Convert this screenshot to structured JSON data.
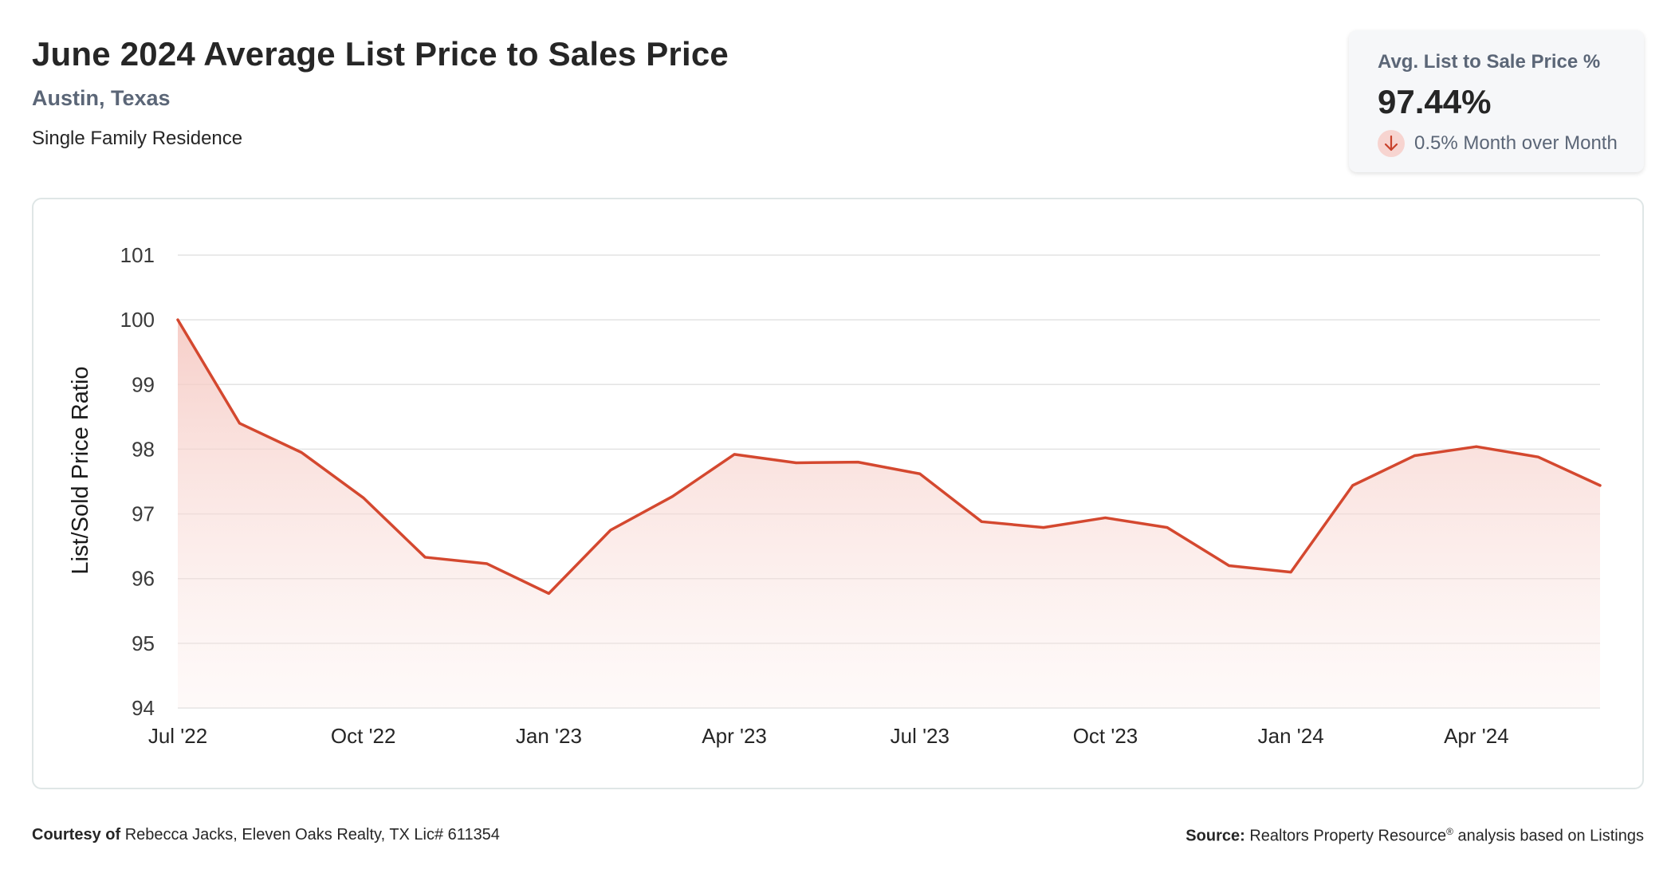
{
  "header": {
    "title": "June 2024 Average List Price to Sales Price",
    "location": "Austin, Texas",
    "property_type": "Single Family Residence"
  },
  "kpi": {
    "label": "Avg. List to Sale Price %",
    "value": "97.44%",
    "change_text": "0.5% Month over Month",
    "direction_icon": "arrow-down-icon"
  },
  "footer": {
    "courtesy_label": "Courtesy of",
    "courtesy_text": "Rebecca Jacks, Eleven Oaks Realty, TX Lic# 611354",
    "source_label": "Source:",
    "source_name": "Realtors Property Resource",
    "source_mark": "®",
    "source_suffix": "analysis based on Listings"
  },
  "colors": {
    "line": "#d4482f",
    "fill_top": "#f5c6bf",
    "grid": "#e3e3e3",
    "title": "#262626",
    "subtitle": "#5b6677"
  },
  "chart_data": {
    "type": "area",
    "ylabel": "List/Sold Price Ratio",
    "xlabel": "",
    "ylim": [
      94,
      101
    ],
    "yticks": [
      101,
      100,
      99,
      98,
      97,
      96,
      95,
      94
    ],
    "grid": true,
    "x_tick_labels": [
      "Jul '22",
      "Oct '22",
      "Jan '23",
      "Apr '23",
      "Jul '23",
      "Oct '23",
      "Jan '24",
      "Apr '24"
    ],
    "x_tick_month_index": [
      0,
      3,
      6,
      9,
      12,
      15,
      18,
      21
    ],
    "x": [
      "2022-07",
      "2022-08",
      "2022-09",
      "2022-10",
      "2022-11",
      "2022-12",
      "2023-01",
      "2023-02",
      "2023-03",
      "2023-04",
      "2023-05",
      "2023-06",
      "2023-07",
      "2023-08",
      "2023-09",
      "2023-10",
      "2023-11",
      "2023-12",
      "2024-01",
      "2024-02",
      "2024-03",
      "2024-04",
      "2024-05",
      "2024-06"
    ],
    "series": [
      {
        "values": [
          100.0,
          98.4,
          97.95,
          97.25,
          96.33,
          96.23,
          95.77,
          96.75,
          97.27,
          97.92,
          97.79,
          97.8,
          97.62,
          96.88,
          96.79,
          96.94,
          96.79,
          96.2,
          96.1,
          97.44,
          97.9,
          98.04,
          97.88,
          97.44
        ]
      }
    ]
  }
}
